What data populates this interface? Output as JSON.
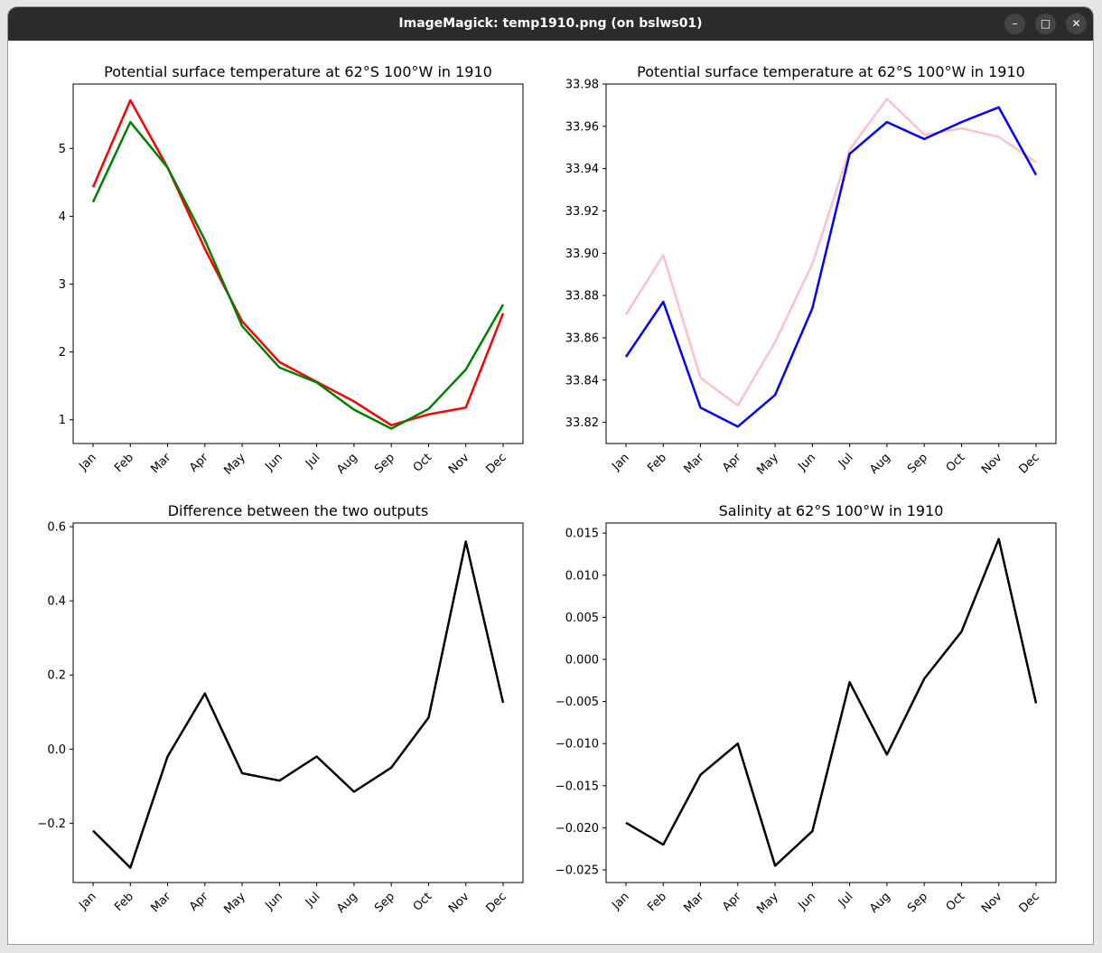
{
  "window": {
    "title": "ImageMagick: temp1910.png (on bslws01)",
    "minimize_icon": "minimize-icon",
    "maximize_icon": "maximize-icon",
    "close_icon": "close-icon"
  },
  "chart_data": [
    {
      "type": "line",
      "title": "Potential surface temperature at 62°S 100°W in 1910",
      "categories": [
        "Jan",
        "Feb",
        "Mar",
        "Apr",
        "May",
        "Jun",
        "Jul",
        "Aug",
        "Sep",
        "Oct",
        "Nov",
        "Dec"
      ],
      "series": [
        {
          "color": "#ff0000",
          "values": [
            4.43,
            5.71,
            4.72,
            3.52,
            2.45,
            1.85,
            1.56,
            1.27,
            0.92,
            1.08,
            1.18,
            2.57
          ]
        },
        {
          "color": "#008000",
          "values": [
            4.21,
            5.39,
            4.72,
            3.65,
            2.38,
            1.77,
            1.55,
            1.15,
            0.87,
            1.16,
            1.74,
            2.7
          ]
        }
      ],
      "ylim": [
        0.65,
        5.95
      ],
      "yticks": [
        1,
        2,
        3,
        4,
        5
      ],
      "ytick_labels": [
        "1",
        "2",
        "3",
        "4",
        "5"
      ],
      "grid": false
    },
    {
      "type": "line",
      "title": "Potential surface temperature at 62°S 100°W in 1910",
      "categories": [
        "Jan",
        "Feb",
        "Mar",
        "Apr",
        "May",
        "Jun",
        "Jul",
        "Aug",
        "Sep",
        "Oct",
        "Nov",
        "Dec"
      ],
      "series": [
        {
          "color": "#ffc0cb",
          "values": [
            33.871,
            33.899,
            33.841,
            33.828,
            33.858,
            33.895,
            33.949,
            33.973,
            33.956,
            33.959,
            33.955,
            33.943
          ]
        },
        {
          "color": "#0000ff",
          "values": [
            33.851,
            33.877,
            33.827,
            33.818,
            33.833,
            33.874,
            33.947,
            33.962,
            33.954,
            33.962,
            33.969,
            33.937
          ]
        }
      ],
      "ylim": [
        33.81,
        33.98
      ],
      "yticks": [
        33.82,
        33.84,
        33.86,
        33.88,
        33.9,
        33.92,
        33.94,
        33.96,
        33.98
      ],
      "ytick_labels": [
        "33.82",
        "33.84",
        "33.86",
        "33.88",
        "33.90",
        "33.92",
        "33.94",
        "33.96",
        "33.98"
      ],
      "grid": false
    },
    {
      "type": "line",
      "title": "Difference between the two outputs",
      "categories": [
        "Jan",
        "Feb",
        "Mar",
        "Apr",
        "May",
        "Jun",
        "Jul",
        "Aug",
        "Sep",
        "Oct",
        "Nov",
        "Dec"
      ],
      "series": [
        {
          "color": "#000000",
          "values": [
            -0.22,
            -0.32,
            -0.02,
            0.15,
            -0.065,
            -0.085,
            -0.02,
            -0.115,
            -0.05,
            0.085,
            0.56,
            0.125
          ]
        }
      ],
      "ylim": [
        -0.36,
        0.61
      ],
      "yticks": [
        -0.2,
        0.0,
        0.2,
        0.4,
        0.6
      ],
      "ytick_labels": [
        "−0.2",
        "0.0",
        "0.2",
        "0.4",
        "0.6"
      ],
      "grid": false
    },
    {
      "type": "line",
      "title": "Salinity at 62°S 100°W in 1910",
      "categories": [
        "Jan",
        "Feb",
        "Mar",
        "Apr",
        "May",
        "Jun",
        "Jul",
        "Aug",
        "Sep",
        "Oct",
        "Nov",
        "Dec"
      ],
      "series": [
        {
          "color": "#000000",
          "values": [
            -0.0194,
            -0.022,
            -0.0137,
            -0.01,
            -0.0245,
            -0.0204,
            -0.0027,
            -0.0113,
            -0.0023,
            0.0033,
            0.0143,
            -0.0052
          ]
        }
      ],
      "ylim": [
        -0.0265,
        0.0162
      ],
      "yticks": [
        -0.025,
        -0.02,
        -0.015,
        -0.01,
        -0.005,
        0.0,
        0.005,
        0.01,
        0.015
      ],
      "ytick_labels": [
        "−0.025",
        "−0.020",
        "−0.015",
        "−0.010",
        "−0.005",
        "0.000",
        "0.005",
        "0.010",
        "0.015"
      ],
      "grid": false
    }
  ]
}
